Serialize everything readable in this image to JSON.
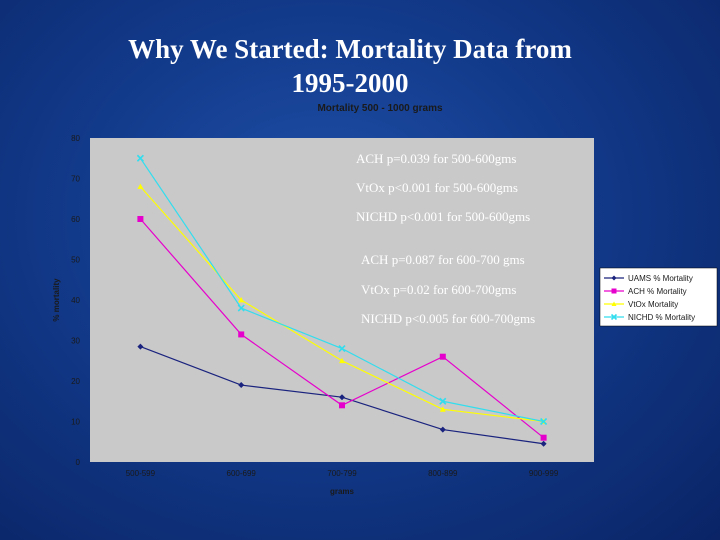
{
  "slide": {
    "title_line1": "Why We Started: Mortality Data from",
    "title_line2": "1995-2000"
  },
  "chart_data": {
    "type": "line",
    "title": "Mortality 500 - 1000 grams",
    "xlabel": "grams",
    "ylabel": "% mortality",
    "categories": [
      "500-599",
      "600-699",
      "700-799",
      "800-899",
      "900-999"
    ],
    "ylim": [
      0,
      80
    ],
    "yticks": [
      0,
      10,
      20,
      30,
      40,
      50,
      60,
      70,
      80
    ],
    "grid": false,
    "legend_position": "right",
    "series": [
      {
        "name": "UAMS % Mortality",
        "color": "#1a237e",
        "marker": "diamond",
        "values": [
          28.5,
          19,
          16,
          8,
          4.5
        ]
      },
      {
        "name": "ACH % Mortality",
        "color": "#e600cc",
        "marker": "square",
        "values": [
          60,
          31.5,
          14,
          26,
          6
        ]
      },
      {
        "name": "VtOx Mortality",
        "color": "#ffff00",
        "marker": "triangle",
        "values": [
          68,
          40,
          25,
          13,
          10
        ]
      },
      {
        "name": "NICHD % Mortality",
        "color": "#33ddee",
        "marker": "x",
        "values": [
          75,
          38,
          28,
          15,
          10
        ]
      }
    ],
    "annotations": [
      "ACH p=0.039 for 500-600gms",
      "VtOx p<0.001 for 500-600gms",
      "NICHD p<0.001 for 500-600gms",
      "ACH p=0.087 for 600-700 gms",
      "VtOx p=0.02 for 600-700gms",
      "NICHD p<0.005 for 600-700gms"
    ]
  }
}
